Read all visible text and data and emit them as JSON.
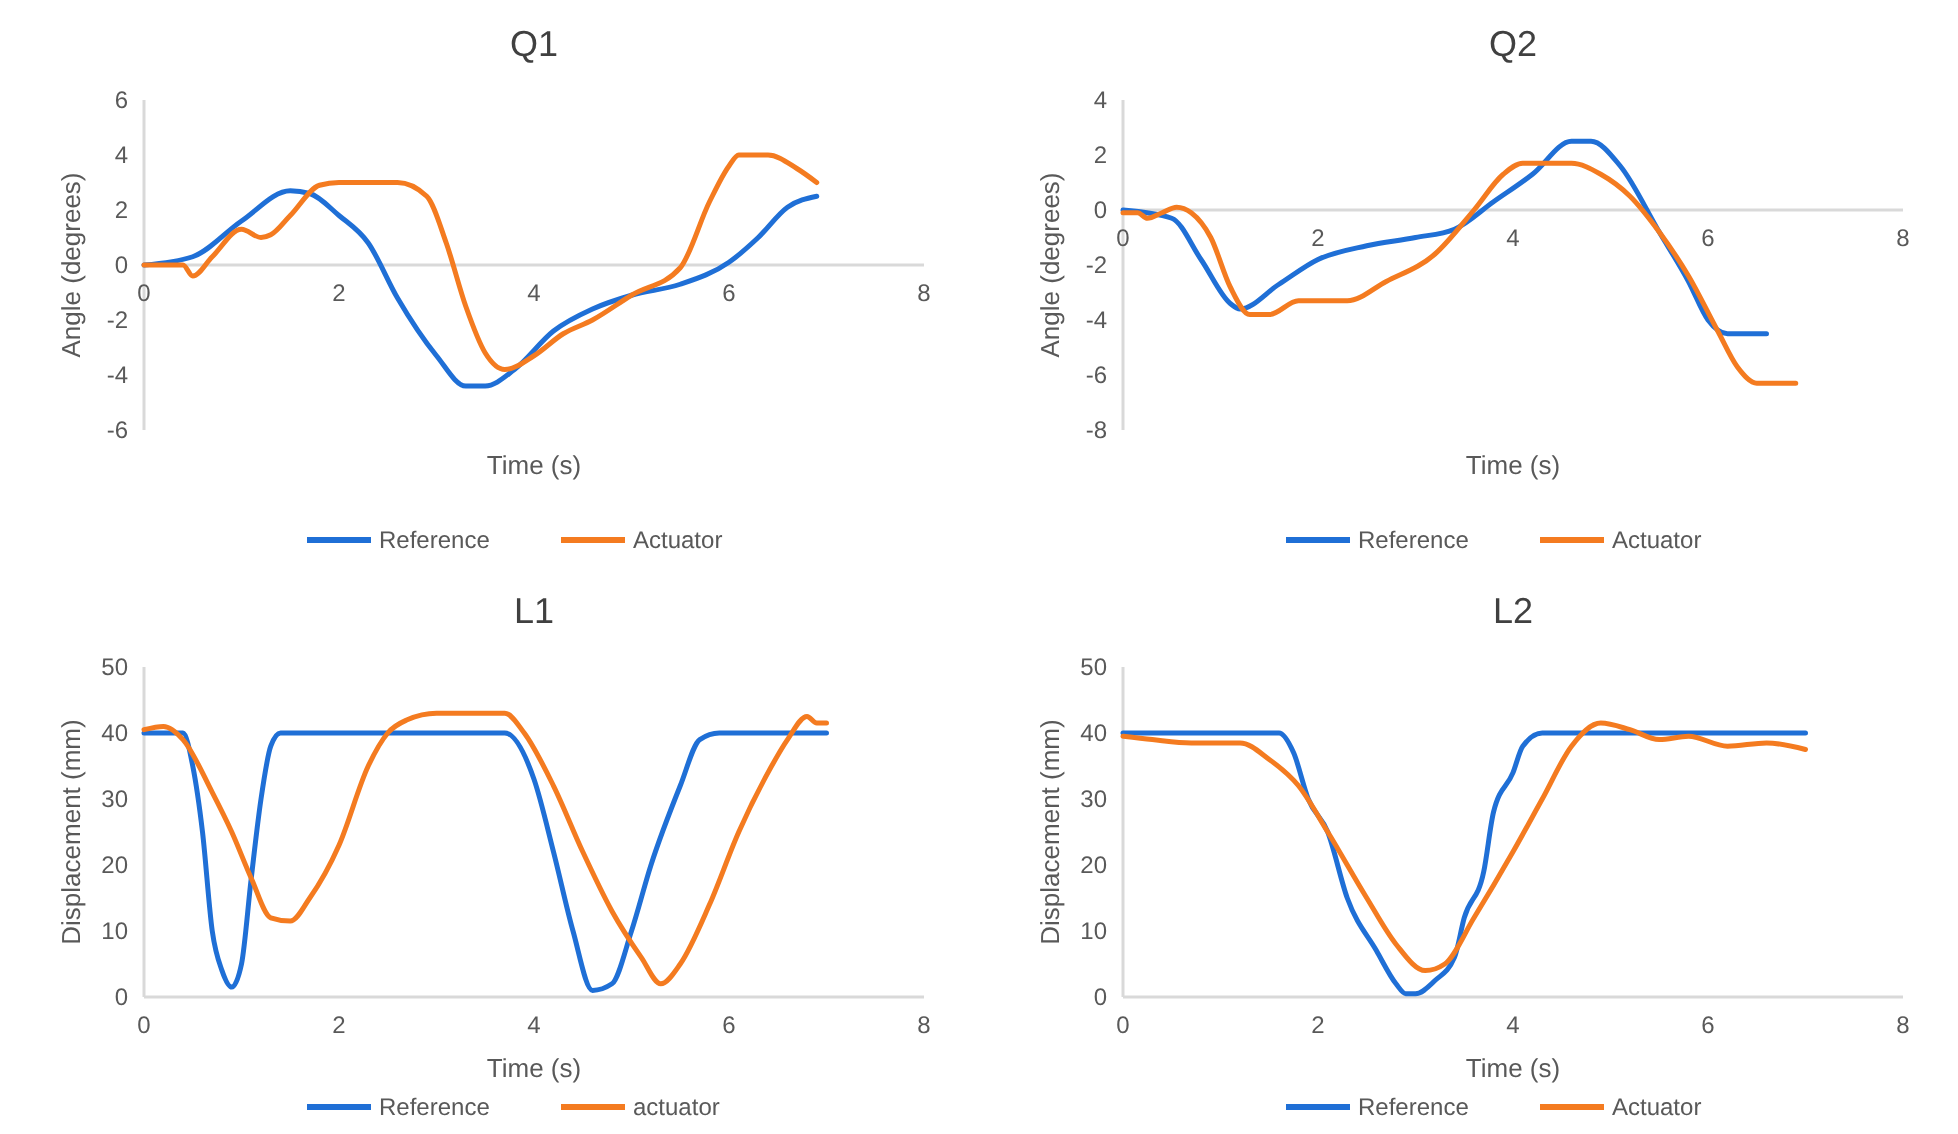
{
  "chart_data": [
    {
      "type": "line",
      "title": "Q1",
      "xlabel": "Time (s)",
      "ylabel": "Angle (degrees)",
      "xlim": [
        0,
        8
      ],
      "xticks": [
        0,
        2,
        4,
        6,
        8
      ],
      "ylim": [
        -6,
        6
      ],
      "yticks": [
        -6,
        -4,
        -2,
        0,
        2,
        4,
        6
      ],
      "legend": "bottom",
      "grid": false,
      "series": [
        {
          "name": "Reference",
          "color": "#1f6fd6",
          "x": [
            0,
            0.5,
            1,
            1.5,
            1.7,
            2,
            2.3,
            2.6,
            3,
            3.3,
            3.5,
            3.8,
            4.2,
            4.6,
            5,
            5.5,
            6,
            6.3,
            6.6,
            6.9
          ],
          "values": [
            0,
            0.3,
            1.6,
            2.7,
            2.6,
            1.8,
            0.8,
            -1.2,
            -3.3,
            -4.4,
            -4.4,
            -3.8,
            -2.4,
            -1.6,
            -1.1,
            -0.7,
            0.1,
            1,
            2.1,
            2.5
          ]
        },
        {
          "name": "Actuator",
          "color": "#f47b20",
          "x": [
            0,
            0.4,
            0.5,
            0.7,
            1,
            1.2,
            1.3,
            1.5,
            1.8,
            2,
            2.6,
            2.9,
            3.1,
            3.3,
            3.5,
            3.7,
            4,
            4.3,
            4.6,
            5,
            5.5,
            5.8,
            6,
            6.1,
            6.4,
            6.7,
            6.9
          ],
          "values": [
            0,
            0,
            -0.4,
            0.3,
            1.3,
            1,
            1.1,
            1.8,
            2.9,
            3,
            3,
            2.5,
            0.8,
            -1.5,
            -3.2,
            -3.8,
            -3.3,
            -2.5,
            -2,
            -1.1,
            -0.1,
            2.3,
            3.6,
            4,
            4,
            3.5,
            3
          ]
        }
      ]
    },
    {
      "type": "line",
      "title": "Q2",
      "xlabel": "Time (s)",
      "ylabel": "Angle (degrees)",
      "xlim": [
        0,
        8
      ],
      "xticks": [
        0,
        2,
        4,
        6,
        8
      ],
      "ylim": [
        -8,
        4
      ],
      "yticks": [
        -8,
        -6,
        -4,
        -2,
        0,
        2,
        4
      ],
      "legend": "bottom",
      "grid": false,
      "series": [
        {
          "name": "Reference",
          "color": "#1f6fd6",
          "x": [
            0,
            0.5,
            0.8,
            1.1,
            1.2,
            1.6,
            2,
            2.5,
            3,
            3.4,
            3.8,
            4.2,
            4.6,
            4.8,
            5.1,
            5.5,
            5.8,
            6,
            6.2,
            6.6
          ],
          "values": [
            0,
            -0.3,
            -1.8,
            -3.4,
            -3.6,
            -2.7,
            -1.8,
            -1.3,
            -1,
            -0.7,
            0.3,
            1.3,
            2.5,
            2.5,
            1.6,
            -0.8,
            -2.6,
            -4,
            -4.5,
            -4.5
          ]
        },
        {
          "name": "Actuator",
          "color": "#f47b20",
          "x": [
            0,
            0.15,
            0.25,
            0.4,
            0.55,
            0.7,
            0.9,
            1.1,
            1.3,
            1.5,
            1.8,
            2.3,
            2.7,
            3.2,
            3.6,
            3.9,
            4.1,
            4.6,
            4.9,
            5.2,
            5.5,
            5.8,
            6.1,
            6.3,
            6.5,
            6.9
          ],
          "values": [
            -0.1,
            -0.1,
            -0.3,
            -0.1,
            0.1,
            -0.1,
            -1,
            -2.8,
            -3.8,
            -3.8,
            -3.3,
            -3.3,
            -2.6,
            -1.6,
            0,
            1.3,
            1.7,
            1.7,
            1.3,
            0.5,
            -0.8,
            -2.4,
            -4.4,
            -5.7,
            -6.3,
            -6.3
          ]
        }
      ]
    },
    {
      "type": "line",
      "title": "L1",
      "xlabel": "Time (s)",
      "ylabel": "Displacement (mm)",
      "xlim": [
        0,
        8
      ],
      "xticks": [
        0,
        2,
        4,
        6,
        8
      ],
      "ylim": [
        0,
        50
      ],
      "yticks": [
        0,
        10,
        20,
        30,
        40,
        50
      ],
      "legend": "bottom",
      "grid": false,
      "series": [
        {
          "name": "Reference",
          "color": "#1f6fd6",
          "x": [
            0,
            0.4,
            0.5,
            0.6,
            0.7,
            0.8,
            0.9,
            1,
            1.1,
            1.2,
            1.3,
            1.4,
            3.7,
            4,
            4.2,
            4.4,
            4.6,
            4.8,
            5,
            5.2,
            5.5,
            5.7,
            5.9,
            7
          ],
          "values": [
            40,
            40,
            35,
            25,
            10,
            4,
            1.5,
            5,
            18,
            30,
            38,
            40,
            40,
            33,
            22,
            10,
            1,
            2,
            10,
            20,
            32,
            39,
            40,
            40
          ]
        },
        {
          "name": "actuator",
          "color": "#f47b20",
          "x": [
            0,
            0.2,
            0.4,
            0.7,
            0.9,
            1.1,
            1.3,
            1.5,
            1.7,
            2,
            2.3,
            2.5,
            2.7,
            3,
            3.7,
            3.9,
            4.2,
            4.5,
            4.8,
            5.1,
            5.3,
            5.5,
            5.8,
            6.1,
            6.4,
            6.6,
            6.8,
            6.9,
            7
          ],
          "values": [
            40.5,
            41,
            39,
            31,
            25,
            18,
            12,
            11.5,
            15,
            23,
            35,
            40,
            42,
            43,
            43,
            40,
            32,
            22,
            13,
            6,
            2,
            5,
            14,
            25,
            34,
            39,
            42.5,
            41.5,
            41.5
          ]
        }
      ]
    },
    {
      "type": "line",
      "title": "L2",
      "xlabel": "Time (s)",
      "ylabel": "Displacement (mm)",
      "xlim": [
        0,
        8
      ],
      "xticks": [
        0,
        2,
        4,
        6,
        8
      ],
      "ylim": [
        0,
        50
      ],
      "yticks": [
        0,
        10,
        20,
        30,
        40,
        50
      ],
      "legend": "bottom",
      "grid": false,
      "series": [
        {
          "name": "Reference",
          "color": "#1f6fd6",
          "x": [
            0,
            1.6,
            1.75,
            1.9,
            2.1,
            2.3,
            2.6,
            2.8,
            2.9,
            3,
            3.2,
            3.4,
            3.5,
            3.7,
            3.8,
            4,
            4.1,
            4.3,
            7
          ],
          "values": [
            40,
            40,
            37,
            30,
            25,
            15,
            7,
            2,
            0.5,
            0.5,
            2.5,
            6,
            12,
            19,
            28,
            34,
            38,
            40,
            40
          ]
        },
        {
          "name": "Actuator",
          "color": "#f47b20",
          "x": [
            0,
            0.3,
            0.7,
            1.2,
            1.5,
            1.8,
            2.1,
            2.5,
            2.8,
            3.1,
            3.3,
            3.6,
            4,
            4.3,
            4.6,
            4.9,
            5.2,
            5.5,
            5.8,
            6.2,
            6.6,
            7
          ],
          "values": [
            39.5,
            39,
            38.5,
            38.5,
            36,
            32,
            25,
            15,
            8,
            4,
            5,
            12,
            22,
            30,
            38,
            41.5,
            40.5,
            39,
            39.5,
            38,
            38.5,
            37.5
          ]
        }
      ]
    }
  ]
}
